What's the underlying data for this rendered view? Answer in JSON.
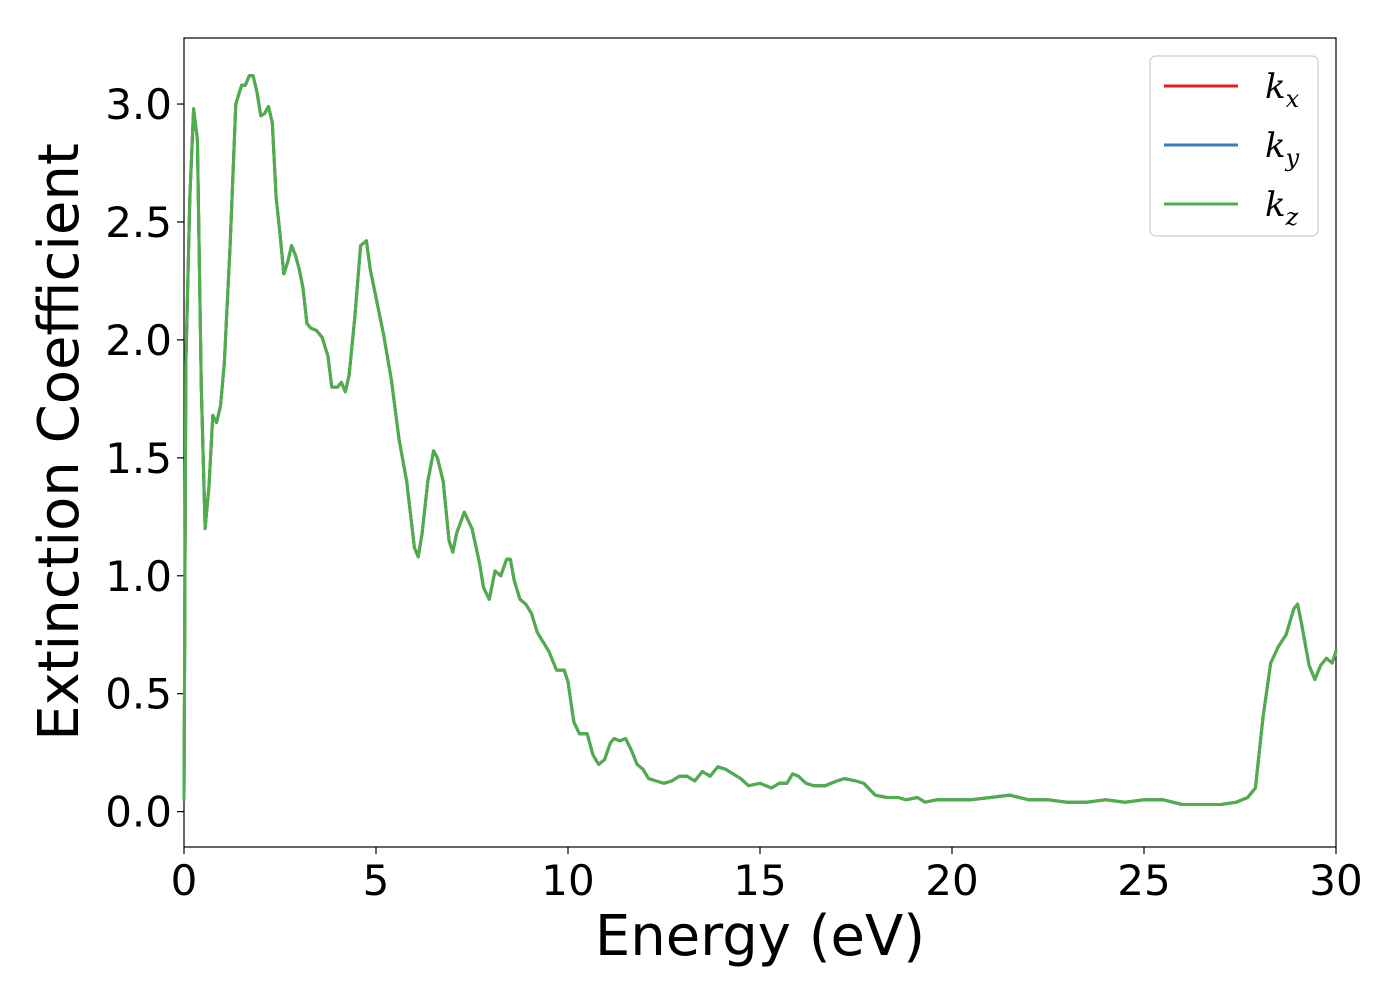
{
  "chart_data": {
    "type": "line",
    "xlabel": "Energy (eV)",
    "ylabel": "Extinction Coefficient",
    "xlim": [
      0,
      30
    ],
    "ylim": [
      -0.15,
      3.28
    ],
    "xticks": [
      0,
      5,
      10,
      15,
      20,
      25,
      30
    ],
    "xtick_labels": [
      "0",
      "5",
      "10",
      "15",
      "20",
      "25",
      "30"
    ],
    "yticks": [
      0.0,
      0.5,
      1.0,
      1.5,
      2.0,
      2.5,
      3.0
    ],
    "ytick_labels": [
      "0.0",
      "0.5",
      "1.0",
      "1.5",
      "2.0",
      "2.5",
      "3.0"
    ],
    "grid": false,
    "legend_position": "top-right",
    "series": [
      {
        "name": "k",
        "subscript": "x",
        "color": "#e41a1c"
      },
      {
        "name": "k",
        "subscript": "y",
        "color": "#377eb8"
      },
      {
        "name": "k",
        "subscript": "z",
        "color": "#4daf4a"
      }
    ],
    "x": [
      0,
      0.05,
      0.15,
      0.25,
      0.35,
      0.45,
      0.55,
      0.65,
      0.75,
      0.85,
      0.95,
      1.05,
      1.2,
      1.35,
      1.5,
      1.6,
      1.7,
      1.8,
      1.9,
      2.0,
      2.1,
      2.2,
      2.3,
      2.4,
      2.5,
      2.6,
      2.7,
      2.8,
      2.9,
      3.0,
      3.1,
      3.2,
      3.3,
      3.45,
      3.6,
      3.75,
      3.85,
      4.0,
      4.1,
      4.2,
      4.3,
      4.45,
      4.6,
      4.75,
      4.85,
      5.0,
      5.2,
      5.4,
      5.6,
      5.8,
      6.0,
      6.1,
      6.2,
      6.35,
      6.5,
      6.6,
      6.75,
      6.9,
      7.0,
      7.1,
      7.3,
      7.5,
      7.7,
      7.8,
      7.95,
      8.1,
      8.25,
      8.4,
      8.5,
      8.6,
      8.75,
      8.9,
      9.05,
      9.2,
      9.35,
      9.5,
      9.7,
      9.9,
      10.0,
      10.15,
      10.3,
      10.5,
      10.65,
      10.8,
      10.95,
      11.1,
      11.2,
      11.35,
      11.5,
      11.65,
      11.8,
      11.95,
      12.1,
      12.3,
      12.5,
      12.7,
      12.9,
      13.1,
      13.3,
      13.5,
      13.7,
      13.9,
      14.1,
      14.3,
      14.5,
      14.7,
      15.0,
      15.3,
      15.5,
      15.7,
      15.85,
      16.0,
      16.2,
      16.4,
      16.7,
      17.0,
      17.2,
      17.5,
      17.7,
      18.0,
      18.3,
      18.6,
      18.8,
      19.1,
      19.3,
      19.6,
      20.0,
      20.5,
      21.0,
      21.5,
      22.0,
      22.5,
      23.0,
      23.5,
      24.0,
      24.5,
      25.0,
      25.5,
      26.0,
      26.5,
      27.0,
      27.4,
      27.7,
      27.9,
      28.1,
      28.3,
      28.5,
      28.7,
      28.9,
      29.0,
      29.1,
      29.3,
      29.45,
      29.6,
      29.75,
      29.9,
      30.0
    ],
    "y": [
      0.05,
      1.9,
      2.6,
      2.98,
      2.85,
      1.8,
      1.2,
      1.38,
      1.68,
      1.65,
      1.72,
      1.9,
      2.4,
      3.0,
      3.08,
      3.08,
      3.12,
      3.12,
      3.05,
      2.95,
      2.96,
      2.99,
      2.92,
      2.6,
      2.45,
      2.28,
      2.33,
      2.4,
      2.36,
      2.3,
      2.22,
      2.07,
      2.05,
      2.04,
      2.01,
      1.93,
      1.8,
      1.8,
      1.82,
      1.78,
      1.85,
      2.1,
      2.4,
      2.42,
      2.3,
      2.18,
      2.02,
      1.83,
      1.58,
      1.4,
      1.12,
      1.08,
      1.18,
      1.4,
      1.53,
      1.5,
      1.4,
      1.15,
      1.1,
      1.18,
      1.27,
      1.2,
      1.05,
      0.95,
      0.9,
      1.02,
      1.0,
      1.07,
      1.07,
      0.98,
      0.9,
      0.88,
      0.84,
      0.76,
      0.72,
      0.68,
      0.6,
      0.6,
      0.55,
      0.38,
      0.33,
      0.33,
      0.24,
      0.2,
      0.22,
      0.29,
      0.31,
      0.3,
      0.31,
      0.26,
      0.2,
      0.18,
      0.14,
      0.13,
      0.12,
      0.13,
      0.15,
      0.15,
      0.13,
      0.17,
      0.15,
      0.19,
      0.18,
      0.16,
      0.14,
      0.11,
      0.12,
      0.1,
      0.12,
      0.12,
      0.16,
      0.15,
      0.12,
      0.11,
      0.11,
      0.13,
      0.14,
      0.13,
      0.12,
      0.07,
      0.06,
      0.06,
      0.05,
      0.06,
      0.04,
      0.05,
      0.05,
      0.05,
      0.06,
      0.07,
      0.05,
      0.05,
      0.04,
      0.04,
      0.05,
      0.04,
      0.05,
      0.05,
      0.03,
      0.03,
      0.03,
      0.04,
      0.06,
      0.1,
      0.4,
      0.63,
      0.7,
      0.75,
      0.86,
      0.88,
      0.8,
      0.62,
      0.56,
      0.62,
      0.65,
      0.63,
      0.68
    ]
  }
}
